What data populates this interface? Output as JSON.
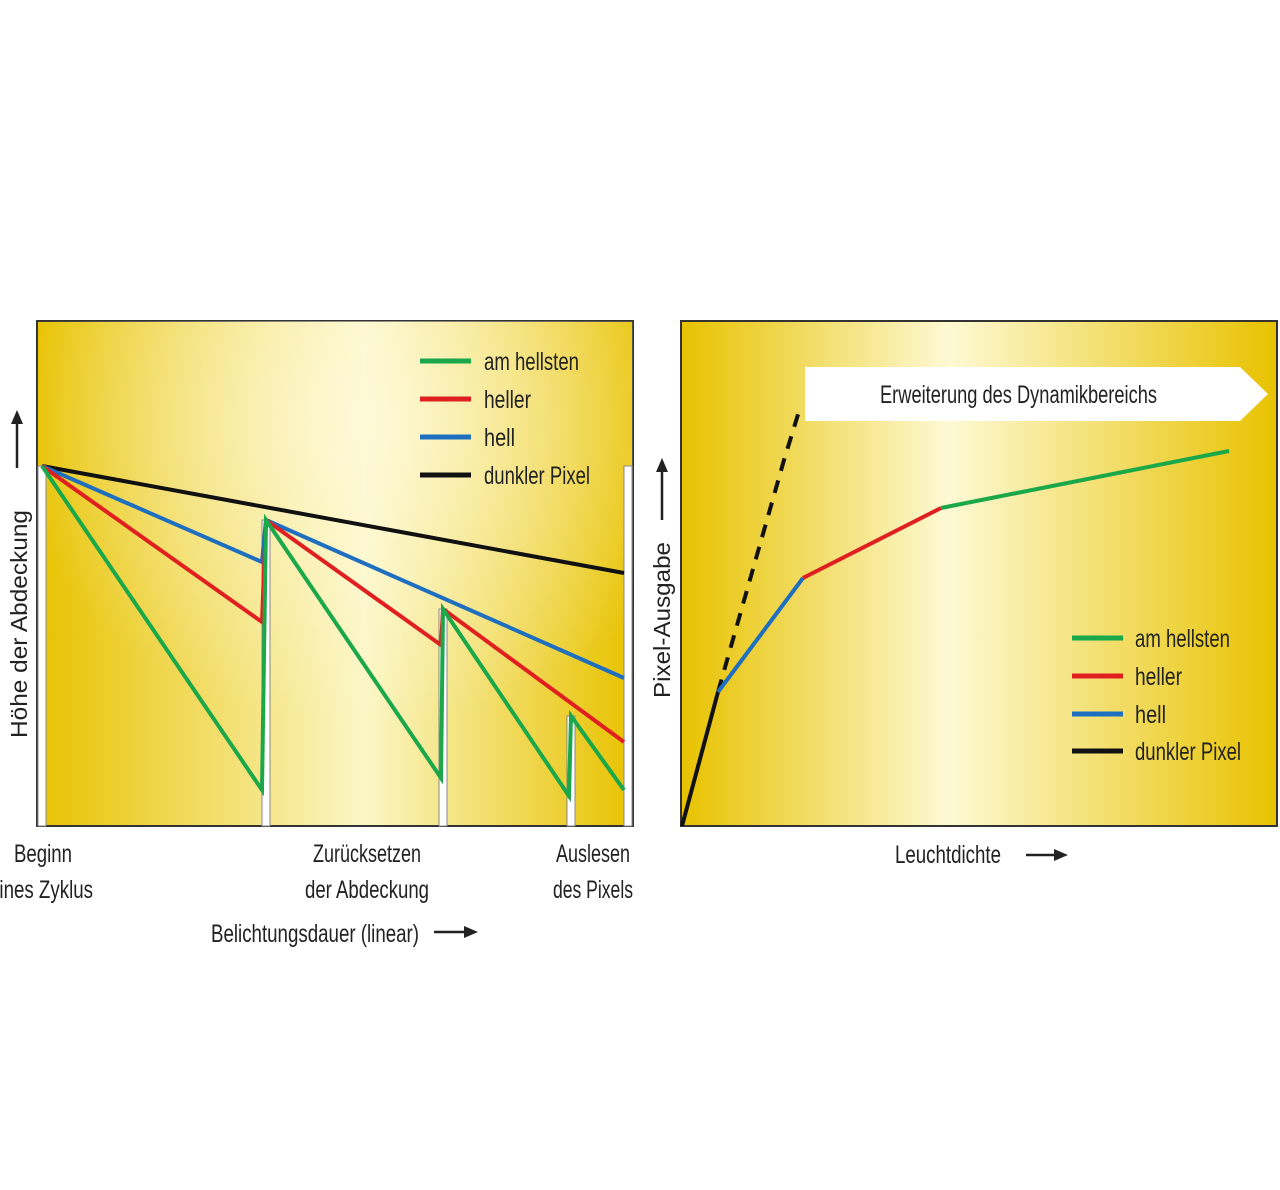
{
  "left_panel": {
    "y_axis_label": "Höhe der Abdeckung",
    "x_axis_label": "Belichtungsdauer (linear)",
    "markers": {
      "start": [
        "Beginn",
        "eines Zyklus"
      ],
      "reset": [
        "Zurücksetzen",
        "der Abdeckung"
      ],
      "readout": [
        "Auslesen",
        "des Pixels"
      ]
    },
    "legend": [
      {
        "label": "am hellsten",
        "color": "#1aa84a"
      },
      {
        "label": "heller",
        "color": "#e02020"
      },
      {
        "label": "hell",
        "color": "#1f6fc0"
      },
      {
        "label": "dunkler Pixel",
        "color": "#111111"
      }
    ]
  },
  "right_panel": {
    "y_axis_label": "Pixel-Ausgabe",
    "x_axis_label": "Leuchtdichte",
    "banner": "Erweiterung des Dynamikbereichs",
    "legend": [
      {
        "label": "am hellsten",
        "color": "#1aa84a"
      },
      {
        "label": "heller",
        "color": "#e02020"
      },
      {
        "label": "hell",
        "color": "#1f6fc0"
      },
      {
        "label": "dunkler Pixel",
        "color": "#111111"
      }
    ]
  },
  "colors": {
    "panel_gradient": [
      "#e9c600",
      "#fbf7c4"
    ],
    "frame": "#333333"
  }
}
